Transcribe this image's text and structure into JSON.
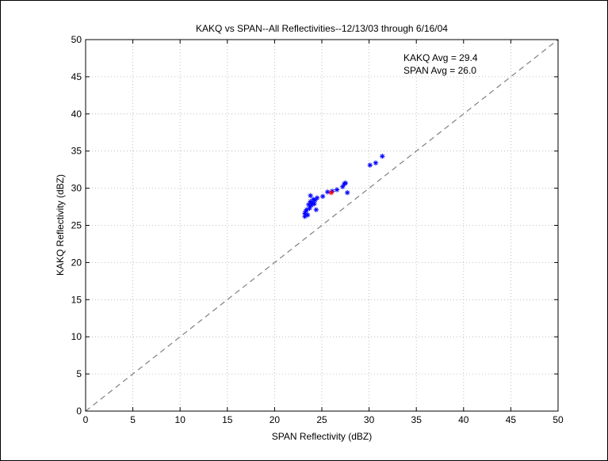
{
  "chart_data": {
    "type": "scatter",
    "title": "KAKQ vs SPAN--All Reflectivities--12/13/03 through 6/16/04",
    "xlabel": "SPAN Reflectivity (dBZ)",
    "ylabel": "KAKQ Reflectivity (dBZ)",
    "xlim": [
      0,
      50
    ],
    "ylim": [
      0,
      50
    ],
    "xticks": [
      0,
      5,
      10,
      15,
      20,
      25,
      30,
      35,
      40,
      45,
      50
    ],
    "yticks": [
      0,
      5,
      10,
      15,
      20,
      25,
      30,
      35,
      40,
      45,
      50
    ],
    "grid": true,
    "reference_line": {
      "style": "dashed",
      "color": "#808080",
      "x": [
        0,
        50
      ],
      "y": [
        0,
        50
      ]
    },
    "annotations": [
      {
        "text": "KAKQ Avg = 29.4"
      },
      {
        "text": "SPAN Avg = 26.0"
      }
    ],
    "series": [
      {
        "marker": "*",
        "color": "#0000ff",
        "points": [
          [
            23.2,
            26.2
          ],
          [
            23.2,
            26.6
          ],
          [
            23.3,
            26.9
          ],
          [
            23.4,
            27.1
          ],
          [
            23.5,
            26.4
          ],
          [
            23.6,
            27.8
          ],
          [
            23.7,
            27.3
          ],
          [
            23.8,
            28.2
          ],
          [
            23.8,
            29.0
          ],
          [
            23.9,
            27.7
          ],
          [
            24.0,
            28.0
          ],
          [
            24.1,
            28.5
          ],
          [
            24.2,
            27.9
          ],
          [
            24.3,
            28.4
          ],
          [
            24.4,
            27.1
          ],
          [
            24.5,
            28.7
          ],
          [
            25.1,
            28.9
          ],
          [
            25.6,
            29.5
          ],
          [
            26.1,
            29.6
          ],
          [
            26.6,
            29.8
          ],
          [
            27.2,
            30.2
          ],
          [
            27.4,
            30.6
          ],
          [
            27.5,
            30.7
          ],
          [
            27.7,
            29.4
          ],
          [
            30.1,
            33.1
          ],
          [
            30.7,
            33.4
          ],
          [
            31.4,
            34.3
          ]
        ]
      },
      {
        "marker": "*",
        "color": "#ff0000",
        "points": [
          [
            26.0,
            29.4
          ]
        ]
      }
    ]
  }
}
